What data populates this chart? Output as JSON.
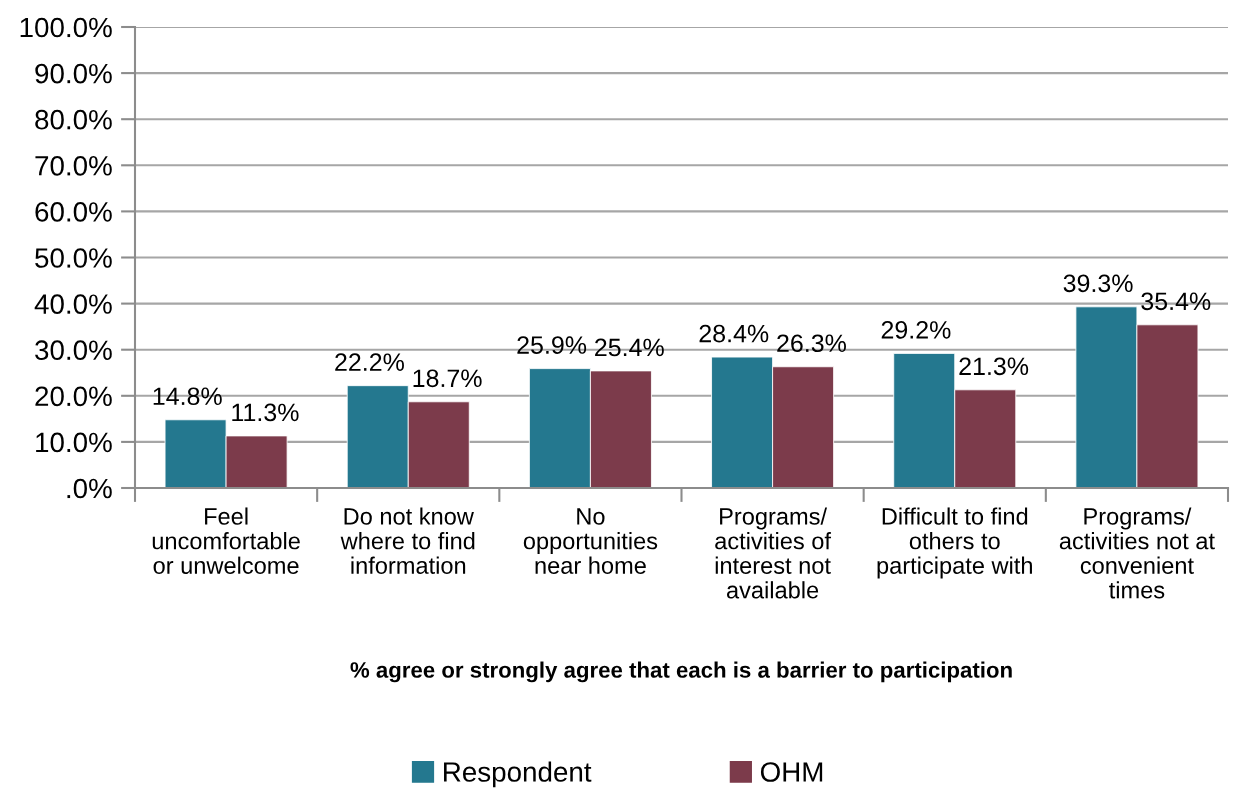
{
  "chart_data": {
    "type": "bar",
    "xlabel": "% agree or strongly agree that each is a barrier to participation",
    "categories": [
      "Feel\nuncomfortable\nor unwelcome",
      "Do not know\nwhere to find\ninformation",
      "No\nopportunities\nnear home",
      "Programs/\nactivities of\ninterest not\navailable",
      "Difficult to find\nothers to\nparticipate with",
      "Programs/\nactivities not at\nconvenient\ntimes"
    ],
    "series": [
      {
        "name": "Respondent",
        "color": "#24788f",
        "values": [
          14.8,
          22.2,
          25.9,
          28.4,
          29.2,
          39.3
        ],
        "value_labels": [
          "14.8%",
          "22.2%",
          "25.9%",
          "28.4%",
          "29.2%",
          "39.3%"
        ]
      },
      {
        "name": "OHM",
        "color": "#7c3b4b",
        "values": [
          11.3,
          18.7,
          25.4,
          26.3,
          21.3,
          35.4
        ],
        "value_labels": [
          "11.3%",
          "18.7%",
          "25.4%",
          "26.3%",
          "21.3%",
          "35.4%"
        ]
      }
    ],
    "ylim": [
      0,
      100
    ],
    "yticks": [
      {
        "value": 0,
        "label": ".0%"
      },
      {
        "value": 10,
        "label": "10.0%"
      },
      {
        "value": 20,
        "label": "20.0%"
      },
      {
        "value": 30,
        "label": "30.0%"
      },
      {
        "value": 40,
        "label": "40.0%"
      },
      {
        "value": 50,
        "label": "50.0%"
      },
      {
        "value": 60,
        "label": "60.0%"
      },
      {
        "value": 70,
        "label": "70.0%"
      },
      {
        "value": 80,
        "label": "80.0%"
      },
      {
        "value": 90,
        "label": "90.0%"
      },
      {
        "value": 100,
        "label": "100.0%"
      }
    ],
    "grid": "y",
    "legend": "bottom"
  }
}
